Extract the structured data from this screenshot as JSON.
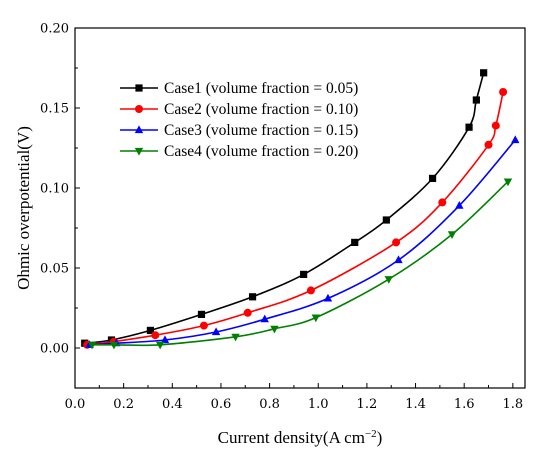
{
  "chart_data": {
    "type": "line",
    "xlabel": "Current density(A cm",
    "xlabel_sup": "−2",
    "xlabel_end": ")",
    "ylabel": "Ohmic overpotential(V)",
    "xlim": [
      0.0,
      1.85
    ],
    "ylim": [
      -0.025,
      0.2
    ],
    "xticks": [
      "0.0",
      "0.2",
      "0.4",
      "0.6",
      "0.8",
      "1.0",
      "1.2",
      "1.4",
      "1.6",
      "1.8"
    ],
    "xtick_values": [
      0.0,
      0.2,
      0.4,
      0.6,
      0.8,
      1.0,
      1.2,
      1.4,
      1.6,
      1.8
    ],
    "yticks": [
      "0.00",
      "0.05",
      "0.10",
      "0.15",
      "0.20"
    ],
    "ytick_values": [
      0.0,
      0.05,
      0.1,
      0.15,
      0.2
    ],
    "legend_position": "top-left",
    "grid": false,
    "series": [
      {
        "name": "Case1 (volume fraction = 0.05)",
        "color": "#000000",
        "marker": "square",
        "points": [
          [
            0.04,
            0.003
          ],
          [
            0.15,
            0.005
          ],
          [
            0.31,
            0.011
          ],
          [
            0.52,
            0.021
          ],
          [
            0.73,
            0.032
          ],
          [
            0.94,
            0.046
          ],
          [
            1.15,
            0.066
          ],
          [
            1.28,
            0.08
          ],
          [
            1.47,
            0.106
          ],
          [
            1.62,
            0.138
          ],
          [
            1.65,
            0.155
          ],
          [
            1.68,
            0.172
          ]
        ]
      },
      {
        "name": "Case2 (volume fraction = 0.10)",
        "color": "#ff0000",
        "marker": "circle",
        "points": [
          [
            0.05,
            0.002
          ],
          [
            0.16,
            0.004
          ],
          [
            0.33,
            0.008
          ],
          [
            0.53,
            0.014
          ],
          [
            0.71,
            0.022
          ],
          [
            0.97,
            0.036
          ],
          [
            1.32,
            0.066
          ],
          [
            1.51,
            0.091
          ],
          [
            1.7,
            0.127
          ],
          [
            1.73,
            0.139
          ],
          [
            1.76,
            0.16
          ]
        ]
      },
      {
        "name": "Case3 (volume fraction = 0.15)",
        "color": "#0000ff",
        "marker": "triangle-up",
        "points": [
          [
            0.06,
            0.002
          ],
          [
            0.17,
            0.003
          ],
          [
            0.37,
            0.005
          ],
          [
            0.58,
            0.01
          ],
          [
            0.78,
            0.018
          ],
          [
            1.04,
            0.031
          ],
          [
            1.33,
            0.055
          ],
          [
            1.58,
            0.089
          ],
          [
            1.81,
            0.13
          ]
        ]
      },
      {
        "name": "Case4 (volume fraction = 0.20)",
        "color": "#008000",
        "marker": "triangle-down",
        "points": [
          [
            0.07,
            0.002
          ],
          [
            0.16,
            0.002
          ],
          [
            0.35,
            0.002
          ],
          [
            0.66,
            0.007
          ],
          [
            0.82,
            0.012
          ],
          [
            0.99,
            0.019
          ],
          [
            1.29,
            0.043
          ],
          [
            1.55,
            0.071
          ],
          [
            1.78,
            0.104
          ]
        ]
      }
    ]
  }
}
